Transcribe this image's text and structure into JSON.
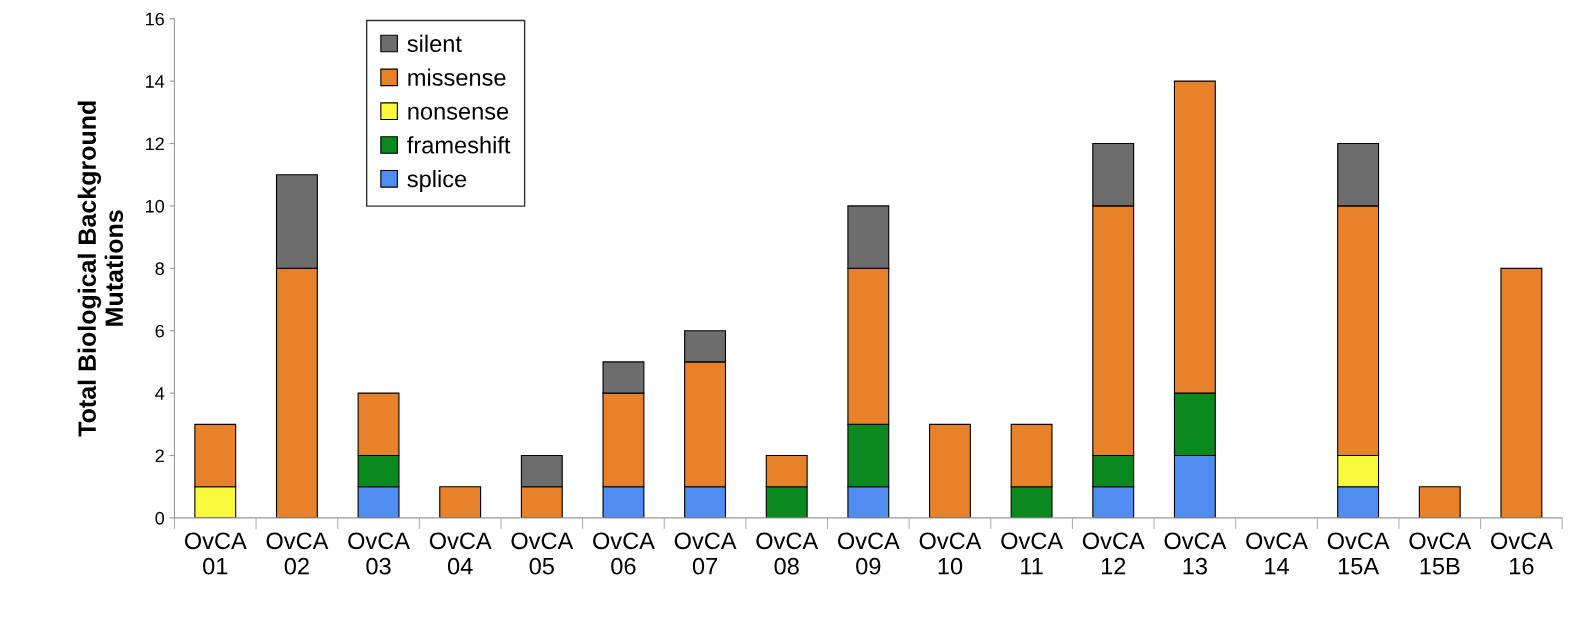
{
  "chart_data": {
    "type": "bar",
    "stacked": true,
    "ylabel": "Total Biological Background\nMutations",
    "categories": [
      "OvCA\n01",
      "OvCA\n02",
      "OvCA\n03",
      "OvCA\n04",
      "OvCA\n05",
      "OvCA\n06",
      "OvCA\n07",
      "OvCA\n08",
      "OvCA\n09",
      "OvCA\n10",
      "OvCA\n11",
      "OvCA\n12",
      "OvCA\n13",
      "OvCA\n14",
      "OvCA\n15A",
      "OvCA\n15B",
      "OvCA\n16"
    ],
    "series": [
      {
        "name": "splice",
        "color": "#4f8ef0",
        "values": [
          0,
          0,
          1,
          0,
          0,
          1,
          1,
          0,
          1,
          0,
          0,
          1,
          2,
          0,
          1,
          0,
          0
        ]
      },
      {
        "name": "frameshift",
        "color": "#0a8a1e",
        "values": [
          0,
          0,
          1,
          0,
          0,
          0,
          0,
          1,
          2,
          0,
          1,
          1,
          2,
          0,
          0,
          0,
          0
        ]
      },
      {
        "name": "nonsense",
        "color": "#fafa3c",
        "values": [
          1,
          0,
          0,
          0,
          0,
          0,
          0,
          0,
          0,
          0,
          0,
          0,
          0,
          0,
          1,
          0,
          0
        ]
      },
      {
        "name": "missense",
        "color": "#e8822a",
        "values": [
          2,
          8,
          2,
          1,
          1,
          3,
          4,
          1,
          5,
          3,
          2,
          8,
          10,
          0,
          8,
          1,
          8
        ]
      },
      {
        "name": "silent",
        "color": "#6d6d6d",
        "values": [
          0,
          3,
          0,
          0,
          1,
          1,
          1,
          0,
          2,
          0,
          0,
          2,
          0,
          0,
          2,
          0,
          0
        ]
      }
    ],
    "ylim": [
      0,
      16
    ],
    "yticks": [
      0,
      2,
      4,
      6,
      8,
      10,
      12,
      14,
      16
    ],
    "grid": false,
    "legend": "top left"
  }
}
